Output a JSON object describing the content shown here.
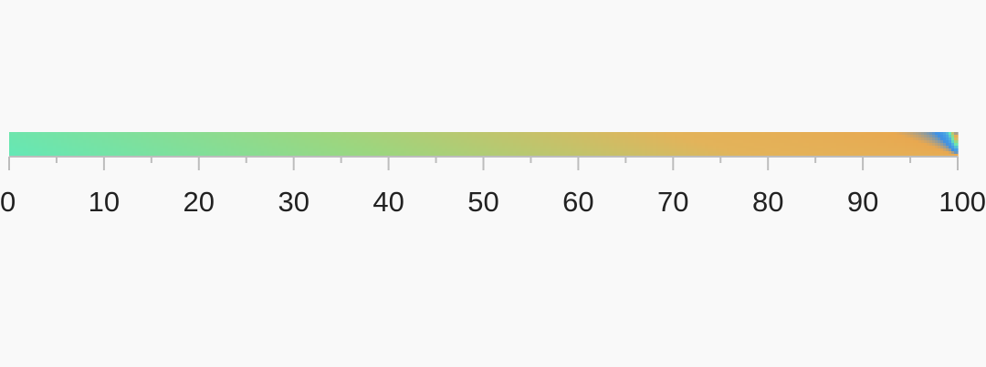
{
  "chart_data": {
    "type": "heatmap",
    "title": "",
    "xlabel": "",
    "ylabel": "",
    "xlim": [
      0,
      100
    ],
    "major_ticks": [
      0,
      10,
      20,
      30,
      40,
      50,
      60,
      70,
      80,
      90,
      100
    ],
    "tick_labels": [
      "0",
      "10",
      "20",
      "30",
      "40",
      "50",
      "60",
      "70",
      "80",
      "90",
      "100"
    ],
    "minor_tick_step": 5,
    "grid": false,
    "legend": "none",
    "colormap": [
      "#64e8b6",
      "#9cd67f",
      "#e3b35a",
      "#e8a850",
      "#3b8fe6",
      "#4fa9e2",
      "#64e8b6"
    ],
    "colors": {
      "background": "#f9f9f9",
      "axis": "#bdbdbd",
      "tick_text": "#222222"
    }
  }
}
